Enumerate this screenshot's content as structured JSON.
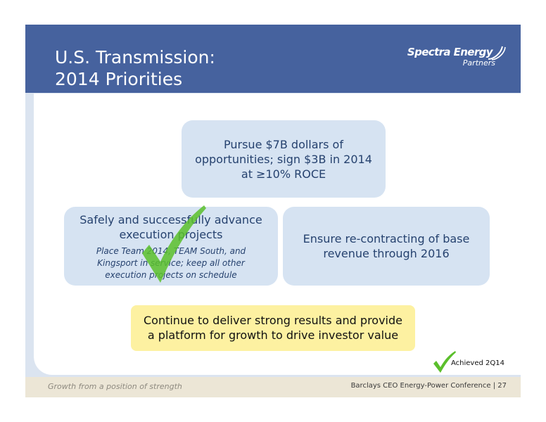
{
  "header": {
    "title_line1": "U.S. Transmission:",
    "title_line2": "2014 Priorities",
    "logo": {
      "main": "Spectra Energy",
      "sub": "Partners"
    }
  },
  "priorities": {
    "top": {
      "line1": "Pursue $7B dollars of",
      "line2": "opportunities; sign $3B in 2014",
      "line3": "at ≥10% ROCE"
    },
    "left": {
      "line1": "Safely and successfully advance",
      "line2": "execution projects",
      "detail": "Place Team 2014, TEAM South, and Kingsport in service; keep all other execution projects on schedule"
    },
    "right": {
      "line1": "Ensure re-contracting of base",
      "line2": "revenue through 2016"
    },
    "bottom": {
      "line1": "Continue to deliver strong results and provide",
      "line2": "a platform for growth to drive investor value"
    }
  },
  "legend": {
    "achieved": "Achieved 2Q14"
  },
  "footer": {
    "tagline": "Growth from a position of strength",
    "conference": "Barclays CEO Energy-Power Conference",
    "separator": "|",
    "page": "27"
  },
  "colors": {
    "header_bg": "#46629e",
    "box_bg": "#d6e3f2",
    "box_text": "#26426f",
    "highlight_bg": "#fdf1a1",
    "check_green": "#5bbf2c"
  }
}
